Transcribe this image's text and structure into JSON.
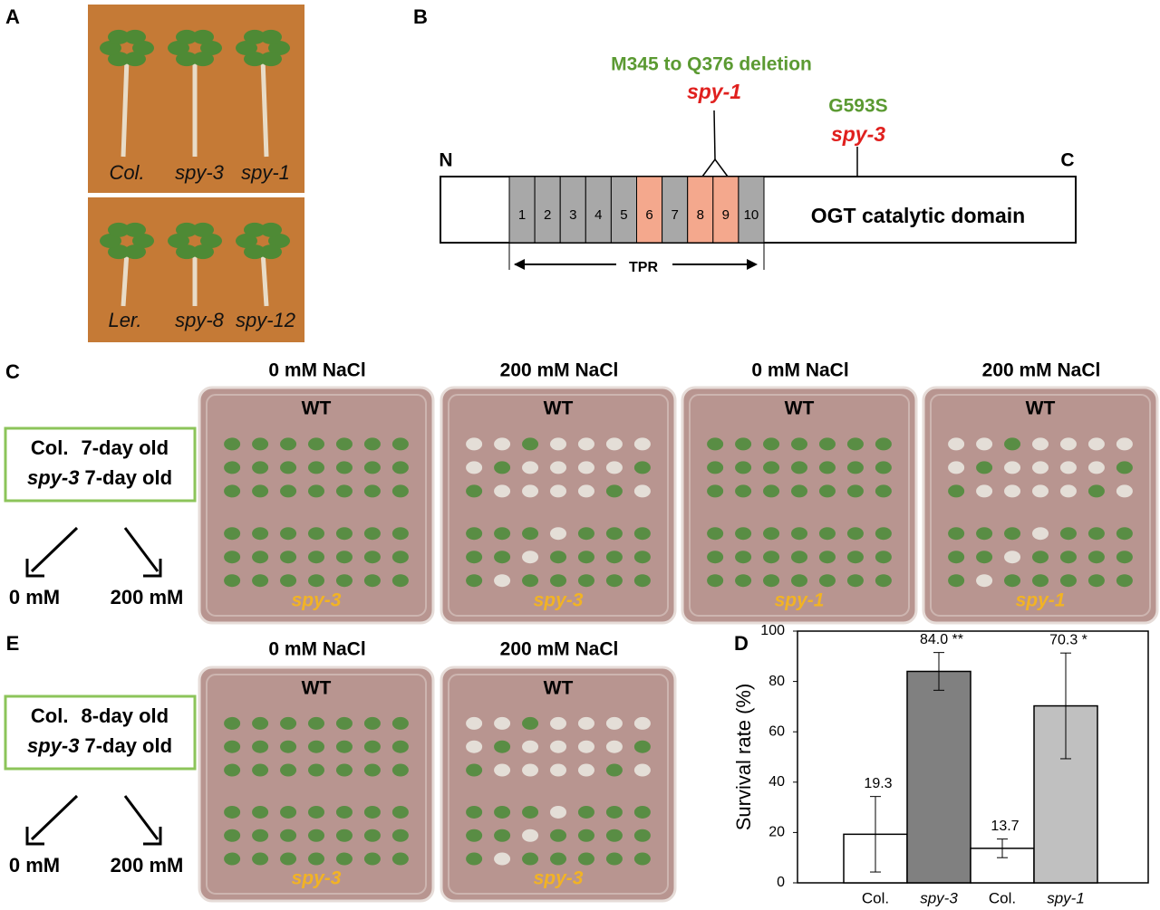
{
  "panel_a": {
    "label": "A",
    "top_labels": [
      "Col.",
      "spy-3",
      "spy-1"
    ],
    "bottom_labels": [
      "Ler.",
      "spy-8",
      "spy-12"
    ]
  },
  "panel_b": {
    "label": "B",
    "deletion": "M345 to Q376 deletion",
    "deletion_allele": "spy-1",
    "point_mutation": "G593S",
    "point_allele": "spy-3",
    "n_term": "N",
    "c_term": "C",
    "tpr_repeats": [
      "1",
      "2",
      "3",
      "4",
      "5",
      "6",
      "7",
      "8",
      "9",
      "10"
    ],
    "domain": "OGT catalytic domain",
    "tpr": "TPR"
  },
  "panel_c": {
    "label": "C",
    "treatment": {
      "genotype_1": "Col.",
      "age_1": "7-day old",
      "genotype_2": "spy-3",
      "age_2": "7-day old",
      "low": "0 mM",
      "high": "200 mM"
    },
    "plates": [
      {
        "header": "0 mM NaCl",
        "top": "WT",
        "bottom": "spy-3"
      },
      {
        "header": "200 mM NaCl",
        "top": "WT",
        "bottom": "spy-3"
      },
      {
        "header": "0 mM NaCl",
        "top": "WT",
        "bottom": "spy-1"
      },
      {
        "header": "200 mM NaCl",
        "top": "WT",
        "bottom": "spy-1"
      }
    ]
  },
  "panel_e": {
    "label": "E",
    "treatment": {
      "genotype_1": "Col.",
      "age_1": "8-day old",
      "genotype_2": "spy-3",
      "age_2": "7-day old",
      "low": "0 mM",
      "high": "200 mM"
    },
    "plates": [
      {
        "header": "0 mM NaCl",
        "top": "WT",
        "bottom": "spy-3"
      },
      {
        "header": "200 mM NaCl",
        "top": "WT",
        "bottom": "spy-3"
      }
    ]
  },
  "chart_data": {
    "type": "bar",
    "panel_label": "D",
    "y_label": "Survival  rate (%)",
    "categories": [
      "Col.",
      "spy-3",
      "Col.",
      "spy-1"
    ],
    "values": [
      19.3,
      84.0,
      13.7,
      70.3
    ],
    "value_labels": [
      "19.3",
      "84.0 **",
      "13.7",
      "70.3 *"
    ],
    "errors": [
      15,
      7.5,
      3.7,
      21
    ],
    "colors": [
      "#ffffff",
      "#808080",
      "#ffffff",
      "#c0c0c0"
    ],
    "ylim": [
      0,
      100
    ],
    "yticks": [
      0,
      20,
      40,
      60,
      80,
      100
    ]
  }
}
